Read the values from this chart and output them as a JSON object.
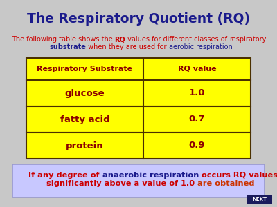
{
  "title": "The Respiratory Quotient (RQ)",
  "title_color": "#1a1a8c",
  "bg_color": "#c8c8c8",
  "table_headers": [
    "Respiratory Substrate",
    "RQ value"
  ],
  "table_rows": [
    [
      "glucose",
      "1.0"
    ],
    [
      "fatty acid",
      "0.7"
    ],
    [
      "protein",
      "0.9"
    ]
  ],
  "table_bg": "#ffff00",
  "table_border": "#4a3000",
  "table_text_col1": "#8b0000",
  "table_text_col2": "#8b0000",
  "bottom_box_bg": "#c8c8ff",
  "bottom_box_border": "#888888",
  "next_btn_color": "#1a1a5c",
  "next_btn_text": "NEXT",
  "subtitle_line1_red": "The following table shows the ",
  "subtitle_line1_rq": "RQ",
  "subtitle_line1_mid": " values for different classes of ",
  "subtitle_line1_end_red": "respiratory",
  "subtitle_line2_blue": "substrate",
  "subtitle_line2_mid": " when they are used for ",
  "subtitle_line2_end_blue": "aerobic respiration"
}
